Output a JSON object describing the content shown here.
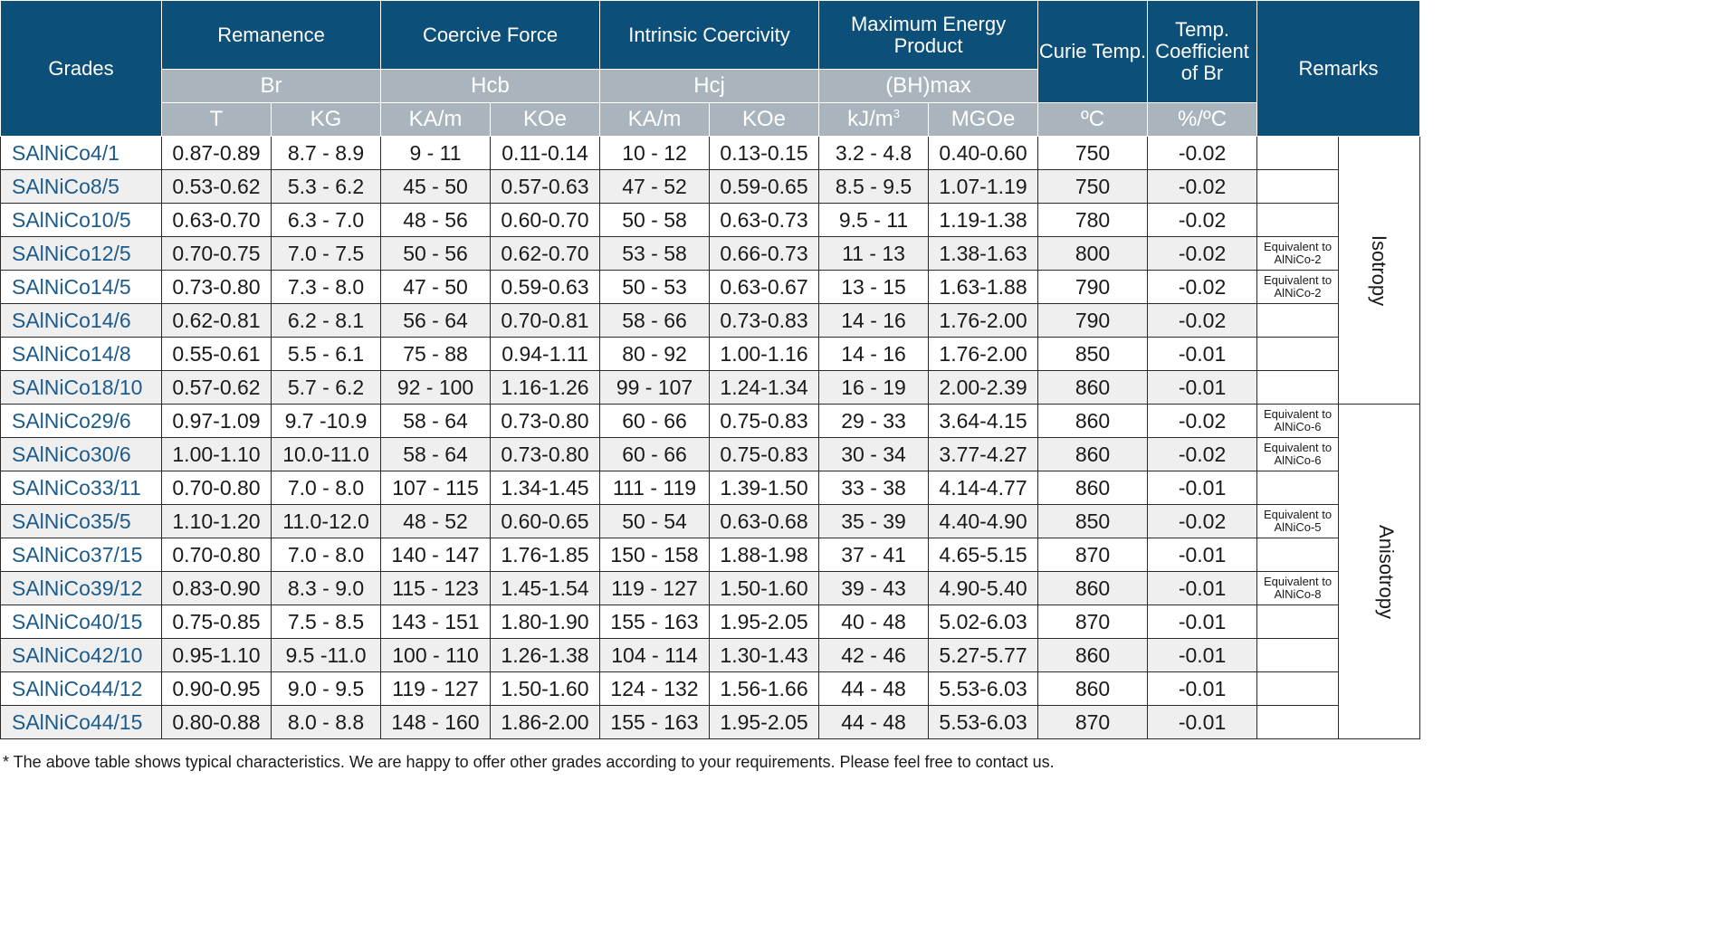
{
  "header": {
    "grades": "Grades",
    "remanence": "Remanence",
    "coercive_force": "Coercive Force",
    "intrinsic_coercivity": "Intrinsic Coercivity",
    "max_energy_product": "Maximum Energy Product",
    "curie_temp": "Curie Temp.",
    "temp_coefficient": "Temp. Coefficient of Br",
    "remarks": "Remarks",
    "sym_br": "Br",
    "sym_hcb": "Hcb",
    "sym_hcj": "Hcj",
    "sym_bhmax": "(BH)max",
    "unit_t": "T",
    "unit_kg": "KG",
    "unit_kam_1": "KA/m",
    "unit_koe_1": "KOe",
    "unit_kam_2": "KA/m",
    "unit_koe_2": "KOe",
    "unit_kjm": "kJ/m",
    "unit_kjm_sup": "3",
    "unit_mgoe": "MGOe",
    "unit_c": "ºC",
    "unit_pct_c": "%/ºC"
  },
  "groups": {
    "isotropy": "Isotropy",
    "anisotropy": "Anisotropy"
  },
  "rows": [
    {
      "grade": "SAlNiCo4/1",
      "t": "0.87-0.89",
      "kg": "8.7 - 8.9",
      "hcb_ka": "9 - 11",
      "hcb_koe": "0.11-0.14",
      "hcj_ka": "10 - 12",
      "hcj_koe": "0.13-0.15",
      "bh_kj": "3.2 - 4.8",
      "bh_mgoe": "0.40-0.60",
      "curie": "750",
      "coef": "-0.02",
      "remark": ""
    },
    {
      "grade": "SAlNiCo8/5",
      "t": "0.53-0.62",
      "kg": "5.3 - 6.2",
      "hcb_ka": "45 - 50",
      "hcb_koe": "0.57-0.63",
      "hcj_ka": "47 - 52",
      "hcj_koe": "0.59-0.65",
      "bh_kj": "8.5 - 9.5",
      "bh_mgoe": "1.07-1.19",
      "curie": "750",
      "coef": "-0.02",
      "remark": ""
    },
    {
      "grade": "SAlNiCo10/5",
      "t": "0.63-0.70",
      "kg": "6.3 - 7.0",
      "hcb_ka": "48 - 56",
      "hcb_koe": "0.60-0.70",
      "hcj_ka": "50 - 58",
      "hcj_koe": "0.63-0.73",
      "bh_kj": "9.5 - 11",
      "bh_mgoe": "1.19-1.38",
      "curie": "780",
      "coef": "-0.02",
      "remark": ""
    },
    {
      "grade": "SAlNiCo12/5",
      "t": "0.70-0.75",
      "kg": "7.0 - 7.5",
      "hcb_ka": "50 - 56",
      "hcb_koe": "0.62-0.70",
      "hcj_ka": "53 - 58",
      "hcj_koe": "0.66-0.73",
      "bh_kj": "11 - 13",
      "bh_mgoe": "1.38-1.63",
      "curie": "800",
      "coef": "-0.02",
      "remark": "Equivalent to AlNiCo-2"
    },
    {
      "grade": "SAlNiCo14/5",
      "t": "0.73-0.80",
      "kg": "7.3 - 8.0",
      "hcb_ka": "47 - 50",
      "hcb_koe": "0.59-0.63",
      "hcj_ka": "50 - 53",
      "hcj_koe": "0.63-0.67",
      "bh_kj": "13 - 15",
      "bh_mgoe": "1.63-1.88",
      "curie": "790",
      "coef": "-0.02",
      "remark": "Equivalent to AlNiCo-2"
    },
    {
      "grade": "SAlNiCo14/6",
      "t": "0.62-0.81",
      "kg": "6.2 - 8.1",
      "hcb_ka": "56 - 64",
      "hcb_koe": "0.70-0.81",
      "hcj_ka": "58 - 66",
      "hcj_koe": "0.73-0.83",
      "bh_kj": "14 - 16",
      "bh_mgoe": "1.76-2.00",
      "curie": "790",
      "coef": "-0.02",
      "remark": ""
    },
    {
      "grade": "SAlNiCo14/8",
      "t": "0.55-0.61",
      "kg": "5.5 - 6.1",
      "hcb_ka": "75 - 88",
      "hcb_koe": "0.94-1.11",
      "hcj_ka": "80 - 92",
      "hcj_koe": "1.00-1.16",
      "bh_kj": "14 - 16",
      "bh_mgoe": "1.76-2.00",
      "curie": "850",
      "coef": "-0.01",
      "remark": ""
    },
    {
      "grade": "SAlNiCo18/10",
      "t": "0.57-0.62",
      "kg": "5.7 - 6.2",
      "hcb_ka": "92 - 100",
      "hcb_koe": "1.16-1.26",
      "hcj_ka": "99 - 107",
      "hcj_koe": "1.24-1.34",
      "bh_kj": "16 - 19",
      "bh_mgoe": "2.00-2.39",
      "curie": "860",
      "coef": "-0.01",
      "remark": ""
    },
    {
      "grade": "SAlNiCo29/6",
      "t": "0.97-1.09",
      "kg": "9.7 -10.9",
      "hcb_ka": "58 - 64",
      "hcb_koe": "0.73-0.80",
      "hcj_ka": "60 - 66",
      "hcj_koe": "0.75-0.83",
      "bh_kj": "29 - 33",
      "bh_mgoe": "3.64-4.15",
      "curie": "860",
      "coef": "-0.02",
      "remark": "Equivalent to AlNiCo-6"
    },
    {
      "grade": "SAlNiCo30/6",
      "t": "1.00-1.10",
      "kg": "10.0-11.0",
      "hcb_ka": "58 - 64",
      "hcb_koe": "0.73-0.80",
      "hcj_ka": "60 - 66",
      "hcj_koe": "0.75-0.83",
      "bh_kj": "30 - 34",
      "bh_mgoe": "3.77-4.27",
      "curie": "860",
      "coef": "-0.02",
      "remark": "Equivalent to AlNiCo-6"
    },
    {
      "grade": "SAlNiCo33/11",
      "t": "0.70-0.80",
      "kg": "7.0 - 8.0",
      "hcb_ka": "107 - 115",
      "hcb_koe": "1.34-1.45",
      "hcj_ka": "111 - 119",
      "hcj_koe": "1.39-1.50",
      "bh_kj": "33 - 38",
      "bh_mgoe": "4.14-4.77",
      "curie": "860",
      "coef": "-0.01",
      "remark": ""
    },
    {
      "grade": "SAlNiCo35/5",
      "t": "1.10-1.20",
      "kg": "11.0-12.0",
      "hcb_ka": "48 - 52",
      "hcb_koe": "0.60-0.65",
      "hcj_ka": "50 - 54",
      "hcj_koe": "0.63-0.68",
      "bh_kj": "35 - 39",
      "bh_mgoe": "4.40-4.90",
      "curie": "850",
      "coef": "-0.02",
      "remark": "Equivalent to AlNiCo-5"
    },
    {
      "grade": "SAlNiCo37/15",
      "t": "0.70-0.80",
      "kg": "7.0 - 8.0",
      "hcb_ka": "140 - 147",
      "hcb_koe": "1.76-1.85",
      "hcj_ka": "150 - 158",
      "hcj_koe": "1.88-1.98",
      "bh_kj": "37 - 41",
      "bh_mgoe": "4.65-5.15",
      "curie": "870",
      "coef": "-0.01",
      "remark": ""
    },
    {
      "grade": "SAlNiCo39/12",
      "t": "0.83-0.90",
      "kg": "8.3 - 9.0",
      "hcb_ka": "115 - 123",
      "hcb_koe": "1.45-1.54",
      "hcj_ka": "119 - 127",
      "hcj_koe": "1.50-1.60",
      "bh_kj": "39 - 43",
      "bh_mgoe": "4.90-5.40",
      "curie": "860",
      "coef": "-0.01",
      "remark": "Equivalent to AlNiCo-8"
    },
    {
      "grade": "SAlNiCo40/15",
      "t": "0.75-0.85",
      "kg": "7.5 - 8.5",
      "hcb_ka": "143 - 151",
      "hcb_koe": "1.80-1.90",
      "hcj_ka": "155 - 163",
      "hcj_koe": "1.95-2.05",
      "bh_kj": "40 - 48",
      "bh_mgoe": "5.02-6.03",
      "curie": "870",
      "coef": "-0.01",
      "remark": ""
    },
    {
      "grade": "SAlNiCo42/10",
      "t": "0.95-1.10",
      "kg": "9.5 -11.0",
      "hcb_ka": "100 - 110",
      "hcb_koe": "1.26-1.38",
      "hcj_ka": "104 - 114",
      "hcj_koe": "1.30-1.43",
      "bh_kj": "42 - 46",
      "bh_mgoe": "5.27-5.77",
      "curie": "860",
      "coef": "-0.01",
      "remark": ""
    },
    {
      "grade": "SAlNiCo44/12",
      "t": "0.90-0.95",
      "kg": "9.0 - 9.5",
      "hcb_ka": "119 - 127",
      "hcb_koe": "1.50-1.60",
      "hcj_ka": "124 - 132",
      "hcj_koe": "1.56-1.66",
      "bh_kj": "44 - 48",
      "bh_mgoe": "5.53-6.03",
      "curie": "860",
      "coef": "-0.01",
      "remark": ""
    },
    {
      "grade": "SAlNiCo44/15",
      "t": "0.80-0.88",
      "kg": "8.0 - 8.8",
      "hcb_ka": "148 - 160",
      "hcb_koe": "1.86-2.00",
      "hcj_ka": "155 - 163",
      "hcj_koe": "1.95-2.05",
      "bh_kj": "44 - 48",
      "bh_mgoe": "5.53-6.03",
      "curie": "870",
      "coef": "-0.01",
      "remark": ""
    }
  ],
  "footnote": "* The above table shows typical characteristics. We are happy to offer other grades according to your requirements. Please feel free to contact us.",
  "colors": {
    "header_bg": "#0c4f79",
    "subheader_bg": "#a9b4bc",
    "row_shade": "#efefef",
    "grade_text": "#1d5b8c"
  }
}
